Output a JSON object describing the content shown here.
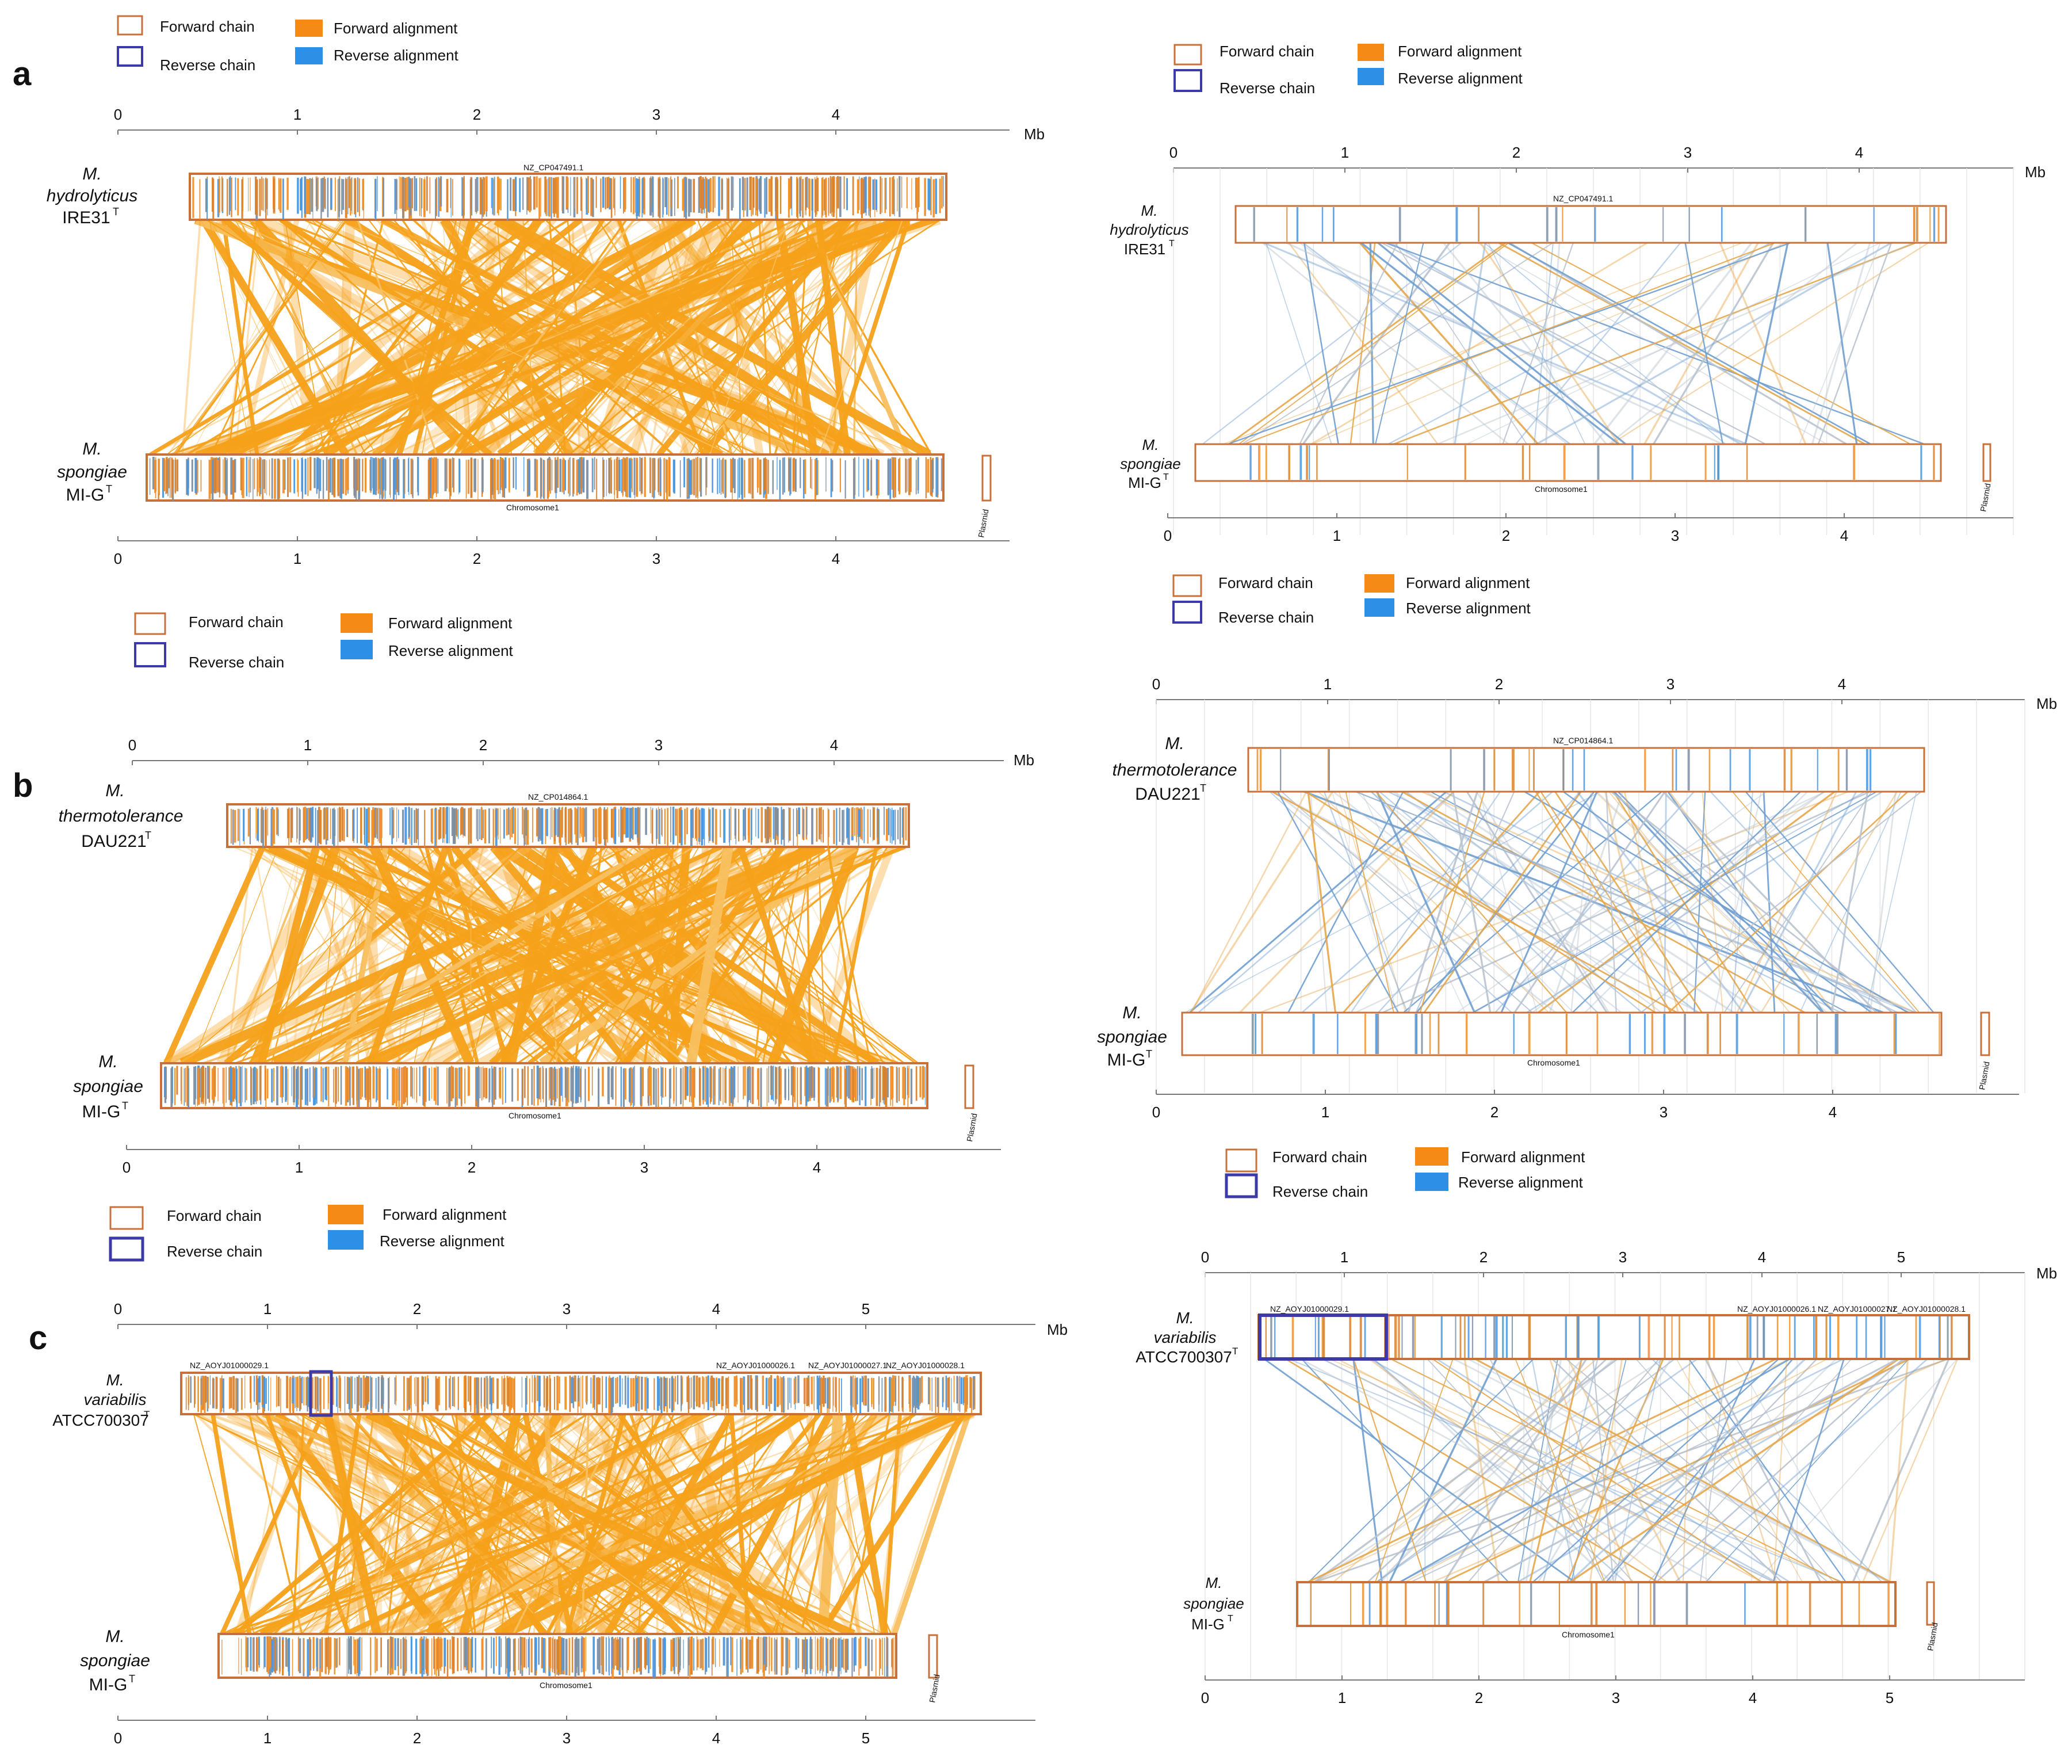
{
  "legend": {
    "forward_chain": "Forward  chain",
    "reverse_chain": "Reverse    chain",
    "forward_alignment": "Forward alignment",
    "reverse_alignment": "Reverse alignment",
    "colors": {
      "forward_chain_box": "#c8703a",
      "reverse_chain_box": "#3b3aa8",
      "forward_alignment": "#f58a16",
      "reverse_alignment": "#2e8fe6"
    }
  },
  "axis_unit": "Mb",
  "reference_chrom_label": "Chromosome1",
  "plasmid_label": "Plasmid",
  "reference": {
    "genus": "M.",
    "species": "spongiae",
    "strain": "MI-G",
    "sup": "T"
  },
  "panels": [
    {
      "id": "a",
      "label": "a",
      "query": {
        "genus": "M.",
        "species": "hydrolyticus",
        "strain": "IRE31",
        "sup": "T",
        "accession": "NZ_CP047491.1"
      },
      "top_ticks": [
        "0",
        "1",
        "2",
        "3",
        "4"
      ],
      "bottom_ticks": [
        "0",
        "1",
        "2",
        "3",
        "4"
      ]
    },
    {
      "id": "b",
      "label": "b",
      "query": {
        "genus": "M.",
        "species": "thermotolerance",
        "strain": "DAU221",
        "sup": "T",
        "accession": "NZ_CP014864.1"
      },
      "top_ticks": [
        "0",
        "1",
        "2",
        "3",
        "4"
      ],
      "bottom_ticks": [
        "0",
        "1",
        "2",
        "3",
        "4"
      ]
    },
    {
      "id": "c",
      "label": "c",
      "query": {
        "genus": "M.",
        "species": "variabilis",
        "strain": "ATCC700307",
        "sup": "T",
        "accession": "NZ_AOYJ01000029.1",
        "contigs": [
          "NZ_AOYJ01000026.1",
          "NZ_AOYJ01000027.1",
          "NZ_AOYJ01000028.1"
        ]
      },
      "top_ticks": [
        "0",
        "1",
        "2",
        "3",
        "4",
        "5"
      ],
      "bottom_ticks": [
        "0",
        "1",
        "2",
        "3",
        "4",
        "5"
      ]
    }
  ]
}
